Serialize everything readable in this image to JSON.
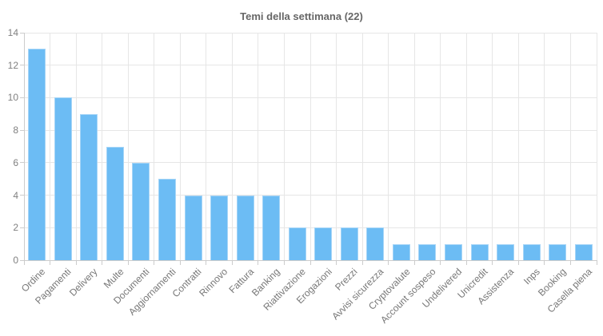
{
  "chart_title": "Temi della settimana (22)",
  "colors": {
    "bar_fill": "#6CBCF4",
    "bar_border": "#A6D5F7",
    "grid_line": "#E6E6E6",
    "axis_line": "#CCCCCC",
    "tick_mark": "#CCCCCC",
    "y_label_text": "#808080",
    "x_label_text": "#777777",
    "title_text": "#666666",
    "background": "#FFFFFF"
  },
  "chart_data": {
    "type": "bar",
    "title": "Temi della settimana (22)",
    "categories": [
      "Ordine",
      "Pagamenti",
      "Delivery",
      "Multe",
      "Documenti",
      "Aggiornamenti",
      "Contratti",
      "Rinnovo",
      "Fattura",
      "Banking",
      "Riattivazione",
      "Erogazioni",
      "Prezzi",
      "Avvisi sicurezza",
      "Cryptovalute",
      "Account sospeso",
      "Undelivered",
      "Unicredit",
      "Assistenza",
      "Inps",
      "Booking",
      "Casella piena"
    ],
    "values": [
      13,
      10,
      9,
      7,
      6,
      5,
      4,
      4,
      4,
      4,
      2,
      2,
      2,
      2,
      1,
      1,
      1,
      1,
      1,
      1,
      1,
      1
    ],
    "xlabel": "",
    "ylabel": "",
    "ylim": [
      0,
      14
    ],
    "yticks": [
      0,
      2,
      4,
      6,
      8,
      10,
      12,
      14
    ],
    "grid": true,
    "legend": "none",
    "x_label_rotation": -45
  }
}
